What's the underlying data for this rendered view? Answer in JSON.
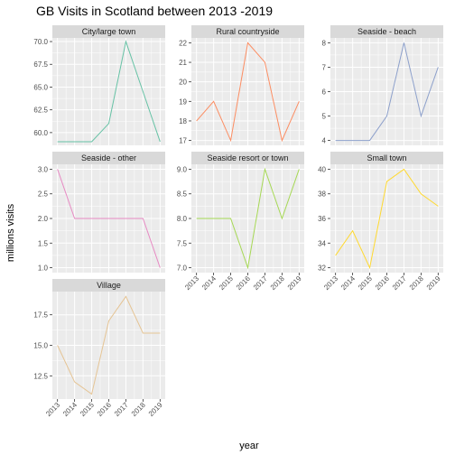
{
  "chart_data": {
    "type": "line",
    "title": "GB Visits in Scotland between 2013 -2019",
    "xlabel": "year",
    "ylabel": "millions visits",
    "x": [
      2013,
      2014,
      2015,
      2016,
      2017,
      2018,
      2019
    ],
    "x_tick_labels": [
      "2013",
      "2014",
      "2015",
      "2016",
      "2017",
      "2018",
      "2019"
    ],
    "grid": true,
    "facets": [
      {
        "name": "City/large town",
        "color": "#66c2a5",
        "values": [
          59,
          59,
          59,
          61,
          70,
          64.5,
          59
        ],
        "ylim": [
          58.6,
          70.4
        ],
        "y_ticks": [
          60,
          62.5,
          65,
          67.5,
          70
        ],
        "y_tick_labels": [
          "60.0",
          "62.5",
          "65.0",
          "67.5",
          "70.0"
        ]
      },
      {
        "name": "Rural countryside",
        "color": "#fc8d62",
        "values": [
          18,
          19,
          17,
          22,
          21,
          17,
          19
        ],
        "ylim": [
          16.75,
          22.25
        ],
        "y_ticks": [
          17,
          18,
          19,
          20,
          21,
          22
        ],
        "y_tick_labels": [
          "17",
          "18",
          "19",
          "20",
          "21",
          "22"
        ]
      },
      {
        "name": "Seaside - beach",
        "color": "#8da0cb",
        "values": [
          4,
          4,
          4,
          5,
          8,
          5,
          7
        ],
        "ylim": [
          3.8,
          8.2
        ],
        "y_ticks": [
          4,
          5,
          6,
          7,
          8
        ],
        "y_tick_labels": [
          "4",
          "5",
          "6",
          "7",
          "8"
        ]
      },
      {
        "name": "Seaside - other",
        "color": "#e78ac3",
        "values": [
          3,
          2,
          2,
          2,
          2,
          2,
          1
        ],
        "ylim": [
          0.9,
          3.1
        ],
        "y_ticks": [
          1,
          1.5,
          2,
          2.5,
          3
        ],
        "y_tick_labels": [
          "1.0",
          "1.5",
          "2.0",
          "2.5",
          "3.0"
        ]
      },
      {
        "name": "Seaside resort or town",
        "color": "#a6d854",
        "values": [
          8,
          8,
          8,
          7,
          9,
          8,
          9
        ],
        "ylim": [
          6.9,
          9.1
        ],
        "y_ticks": [
          7,
          7.5,
          8,
          8.5,
          9
        ],
        "y_tick_labels": [
          "7.0",
          "7.5",
          "8.0",
          "8.5",
          "9.0"
        ]
      },
      {
        "name": "Small town",
        "color": "#ffd92f",
        "values": [
          33,
          35,
          32,
          39,
          40,
          38,
          37
        ],
        "ylim": [
          31.6,
          40.4
        ],
        "y_ticks": [
          32,
          34,
          36,
          38,
          40
        ],
        "y_tick_labels": [
          "32",
          "34",
          "36",
          "38",
          "40"
        ]
      },
      {
        "name": "Village",
        "color": "#e5c494",
        "values": [
          15,
          12,
          11,
          17,
          19,
          16,
          16
        ],
        "ylim": [
          10.6,
          19.4
        ],
        "y_ticks": [
          12.5,
          15,
          17.5
        ],
        "y_tick_labels": [
          "12.5",
          "15.0",
          "17.5"
        ]
      }
    ]
  }
}
